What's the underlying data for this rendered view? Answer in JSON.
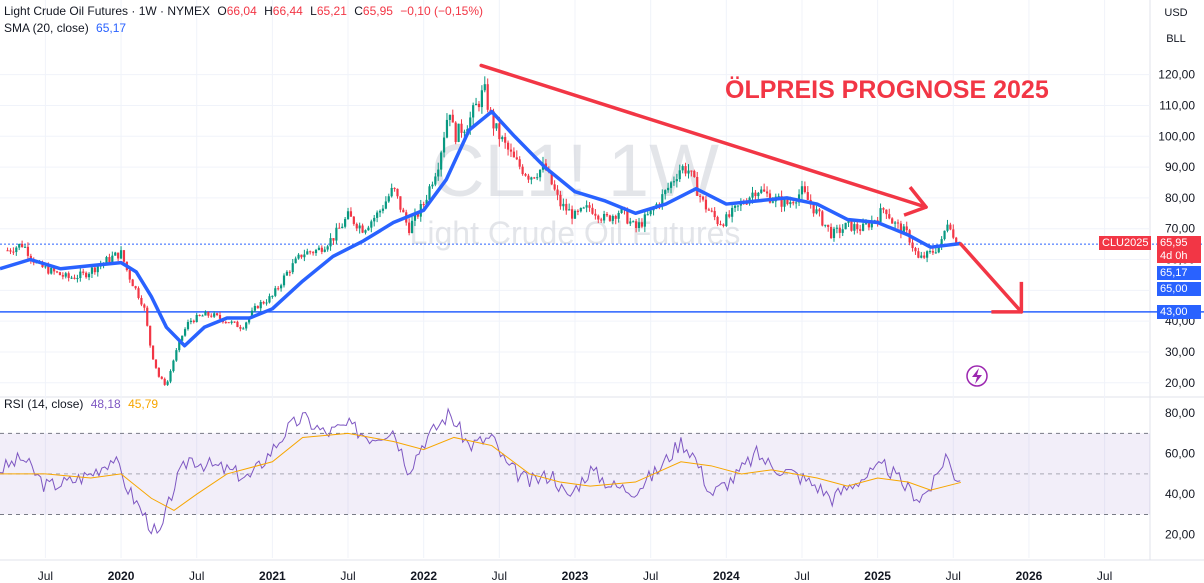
{
  "header": {
    "symbol_title": "Light Crude Oil Futures · 1W · NYMEX",
    "open_label": "O",
    "open": "66,04",
    "high_label": "H",
    "high": "66,44",
    "low_label": "L",
    "low": "65,21",
    "close_label": "C",
    "close": "65,95",
    "change": "−0,10 (−0,15%)",
    "sma_label": "SMA (20, close)",
    "sma_value": "65,17",
    "rsi_label": "RSI (14, close)",
    "rsi_value": "48,18",
    "rsi_ma_value": "45,79"
  },
  "top_right": {
    "currency": "USD",
    "unit": "BLL"
  },
  "watermark": {
    "line1": "CL1! 1W",
    "line2": "Light Crude Oil Futures"
  },
  "annotation": {
    "text": "ÖLPREIS PROGNOSE 2025",
    "color": "#f23645"
  },
  "price_tags": {
    "symbol": "CLU2025",
    "last": "65,95",
    "countdown": "4d 0h",
    "sma": "65,17",
    "level_65": "65,00",
    "level_43": "43,00"
  },
  "colors": {
    "up": "#089981",
    "down": "#f23645",
    "sma": "#2962ff",
    "rsi": "#7e57c2",
    "rsi_ma": "#f7a600",
    "level": "#2962ff"
  },
  "chart_data": {
    "type": "line",
    "price_axis": {
      "ticks": [
        "20,00",
        "30,00",
        "40,00",
        "50,00",
        "60,00",
        "70,00",
        "80,00",
        "90,00",
        "100,00",
        "110,00",
        "120,00"
      ],
      "range": [
        17,
        128
      ]
    },
    "rsi_axis": {
      "ticks": [
        "20,00",
        "40,00",
        "60,00",
        "80,00"
      ],
      "range": [
        10,
        85
      ],
      "bands": [
        30,
        70
      ]
    },
    "x_labels": [
      "Jul",
      "2020",
      "Jul",
      "2021",
      "Jul",
      "2022",
      "Jul",
      "2023",
      "Jul",
      "2024",
      "Jul",
      "2025",
      "Jul",
      "2026",
      "Jul"
    ],
    "x_label_times": [
      2019.5,
      2020.0,
      2020.5,
      2021.0,
      2021.5,
      2022.0,
      2022.5,
      2023.0,
      2023.5,
      2024.0,
      2024.5,
      2025.0,
      2025.5,
      2026.0,
      2026.5
    ],
    "x_range": [
      2019.2,
      2026.8
    ],
    "horizontal_levels": [
      65.0,
      43.0
    ],
    "trendline": {
      "from": [
        2022.38,
        123
      ],
      "to": [
        2025.32,
        77
      ]
    },
    "forecast_arrow": {
      "from": [
        2025.55,
        65
      ],
      "to": [
        2025.95,
        43
      ]
    },
    "series": [
      {
        "name": "CL1!",
        "points": [
          [
            2019.25,
            63
          ],
          [
            2019.35,
            65
          ],
          [
            2019.45,
            58
          ],
          [
            2019.55,
            56
          ],
          [
            2019.65,
            54
          ],
          [
            2019.75,
            55
          ],
          [
            2019.85,
            58
          ],
          [
            2019.95,
            61
          ],
          [
            2020.0,
            62
          ],
          [
            2020.05,
            55
          ],
          [
            2020.1,
            50
          ],
          [
            2020.15,
            45
          ],
          [
            2020.2,
            30
          ],
          [
            2020.25,
            22
          ],
          [
            2020.3,
            19
          ],
          [
            2020.35,
            28
          ],
          [
            2020.4,
            35
          ],
          [
            2020.45,
            40
          ],
          [
            2020.5,
            41
          ],
          [
            2020.55,
            42
          ],
          [
            2020.6,
            42
          ],
          [
            2020.7,
            40
          ],
          [
            2020.8,
            38
          ],
          [
            2020.9,
            45
          ],
          [
            2021.0,
            48
          ],
          [
            2021.1,
            56
          ],
          [
            2021.2,
            62
          ],
          [
            2021.3,
            63
          ],
          [
            2021.4,
            67
          ],
          [
            2021.5,
            74
          ],
          [
            2021.6,
            70
          ],
          [
            2021.7,
            75
          ],
          [
            2021.8,
            83
          ],
          [
            2021.9,
            70
          ],
          [
            2022.0,
            78
          ],
          [
            2022.1,
            92
          ],
          [
            2022.17,
            110
          ],
          [
            2022.2,
            100
          ],
          [
            2022.3,
            105
          ],
          [
            2022.4,
            115
          ],
          [
            2022.45,
            105
          ],
          [
            2022.5,
            100
          ],
          [
            2022.6,
            92
          ],
          [
            2022.7,
            87
          ],
          [
            2022.8,
            90
          ],
          [
            2022.9,
            78
          ],
          [
            2023.0,
            74
          ],
          [
            2023.1,
            77
          ],
          [
            2023.2,
            73
          ],
          [
            2023.3,
            76
          ],
          [
            2023.4,
            70
          ],
          [
            2023.5,
            75
          ],
          [
            2023.6,
            82
          ],
          [
            2023.7,
            90
          ],
          [
            2023.75,
            89
          ],
          [
            2023.85,
            78
          ],
          [
            2023.95,
            72
          ],
          [
            2024.0,
            73
          ],
          [
            2024.1,
            78
          ],
          [
            2024.2,
            83
          ],
          [
            2024.3,
            80
          ],
          [
            2024.4,
            78
          ],
          [
            2024.5,
            82
          ],
          [
            2024.6,
            75
          ],
          [
            2024.7,
            68
          ],
          [
            2024.8,
            71
          ],
          [
            2024.9,
            70
          ],
          [
            2025.0,
            74
          ],
          [
            2025.05,
            77
          ],
          [
            2025.1,
            72
          ],
          [
            2025.2,
            68
          ],
          [
            2025.27,
            60
          ],
          [
            2025.35,
            62
          ],
          [
            2025.42,
            65
          ],
          [
            2025.47,
            74
          ],
          [
            2025.5,
            67
          ],
          [
            2025.55,
            66
          ]
        ]
      },
      {
        "name": "SMA (20, close)",
        "points": [
          [
            2019.2,
            57
          ],
          [
            2019.4,
            60
          ],
          [
            2019.6,
            57
          ],
          [
            2019.8,
            58
          ],
          [
            2020.0,
            59
          ],
          [
            2020.1,
            56
          ],
          [
            2020.2,
            48
          ],
          [
            2020.3,
            38
          ],
          [
            2020.42,
            32
          ],
          [
            2020.55,
            38
          ],
          [
            2020.7,
            41
          ],
          [
            2020.85,
            41
          ],
          [
            2021.0,
            44
          ],
          [
            2021.2,
            53
          ],
          [
            2021.4,
            61
          ],
          [
            2021.6,
            66
          ],
          [
            2021.8,
            72
          ],
          [
            2022.0,
            76
          ],
          [
            2022.15,
            86
          ],
          [
            2022.3,
            102
          ],
          [
            2022.45,
            108
          ],
          [
            2022.6,
            100
          ],
          [
            2022.8,
            90
          ],
          [
            2023.0,
            82
          ],
          [
            2023.2,
            79
          ],
          [
            2023.4,
            75
          ],
          [
            2023.6,
            78
          ],
          [
            2023.8,
            83
          ],
          [
            2024.0,
            78
          ],
          [
            2024.2,
            79
          ],
          [
            2024.4,
            80
          ],
          [
            2024.6,
            78
          ],
          [
            2024.8,
            73
          ],
          [
            2025.0,
            72
          ],
          [
            2025.2,
            68
          ],
          [
            2025.35,
            64
          ],
          [
            2025.55,
            65.2
          ]
        ]
      },
      {
        "name": "RSI (14, close)",
        "points": [
          [
            2019.2,
            52
          ],
          [
            2019.35,
            58
          ],
          [
            2019.5,
            44
          ],
          [
            2019.65,
            46
          ],
          [
            2019.8,
            50
          ],
          [
            2019.95,
            58
          ],
          [
            2020.05,
            42
          ],
          [
            2020.15,
            30
          ],
          [
            2020.25,
            18
          ],
          [
            2020.35,
            44
          ],
          [
            2020.45,
            58
          ],
          [
            2020.55,
            55
          ],
          [
            2020.7,
            52
          ],
          [
            2020.85,
            48
          ],
          [
            2021.0,
            62
          ],
          [
            2021.1,
            72
          ],
          [
            2021.2,
            78
          ],
          [
            2021.35,
            70
          ],
          [
            2021.5,
            74
          ],
          [
            2021.65,
            68
          ],
          [
            2021.8,
            72
          ],
          [
            2021.9,
            52
          ],
          [
            2022.0,
            66
          ],
          [
            2022.17,
            80
          ],
          [
            2022.3,
            64
          ],
          [
            2022.45,
            68
          ],
          [
            2022.55,
            54
          ],
          [
            2022.7,
            46
          ],
          [
            2022.85,
            50
          ],
          [
            2022.95,
            38
          ],
          [
            2023.1,
            52
          ],
          [
            2023.25,
            44
          ],
          [
            2023.4,
            42
          ],
          [
            2023.55,
            52
          ],
          [
            2023.7,
            66
          ],
          [
            2023.78,
            60
          ],
          [
            2023.9,
            40
          ],
          [
            2024.05,
            48
          ],
          [
            2024.2,
            60
          ],
          [
            2024.3,
            54
          ],
          [
            2024.45,
            50
          ],
          [
            2024.6,
            44
          ],
          [
            2024.7,
            38
          ],
          [
            2024.85,
            46
          ],
          [
            2024.95,
            50
          ],
          [
            2025.05,
            54
          ],
          [
            2025.18,
            44
          ],
          [
            2025.28,
            38
          ],
          [
            2025.38,
            46
          ],
          [
            2025.45,
            60
          ],
          [
            2025.5,
            50
          ],
          [
            2025.55,
            48
          ]
        ]
      },
      {
        "name": "RSI MA",
        "points": [
          [
            2019.2,
            50
          ],
          [
            2019.5,
            50
          ],
          [
            2019.8,
            48
          ],
          [
            2020.0,
            50
          ],
          [
            2020.2,
            38
          ],
          [
            2020.35,
            32
          ],
          [
            2020.5,
            40
          ],
          [
            2020.7,
            50
          ],
          [
            2021.0,
            56
          ],
          [
            2021.2,
            68
          ],
          [
            2021.5,
            70
          ],
          [
            2021.8,
            66
          ],
          [
            2022.0,
            62
          ],
          [
            2022.2,
            68
          ],
          [
            2022.45,
            64
          ],
          [
            2022.7,
            50
          ],
          [
            2022.9,
            46
          ],
          [
            2023.1,
            44
          ],
          [
            2023.4,
            46
          ],
          [
            2023.7,
            56
          ],
          [
            2023.9,
            54
          ],
          [
            2024.1,
            50
          ],
          [
            2024.3,
            52
          ],
          [
            2024.6,
            48
          ],
          [
            2024.8,
            44
          ],
          [
            2025.0,
            48
          ],
          [
            2025.2,
            46
          ],
          [
            2025.35,
            42
          ],
          [
            2025.55,
            45.8
          ]
        ]
      }
    ]
  }
}
